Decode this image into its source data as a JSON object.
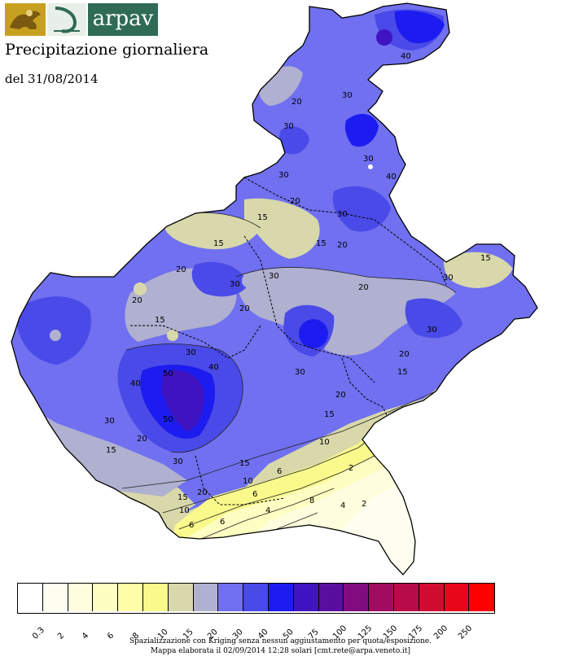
{
  "header": {
    "brand": "arpav",
    "title": "Precipitazione giornaliera",
    "date": "del 31/08/2014"
  },
  "map": {
    "contour_labels": [
      "40",
      "20",
      "30",
      "30",
      "30",
      "40",
      "30",
      "30",
      "20",
      "15",
      "15",
      "15",
      "20",
      "30",
      "20",
      "20",
      "15",
      "30",
      "30",
      "15",
      "20",
      "20",
      "30",
      "15",
      "30",
      "40",
      "30",
      "20",
      "40",
      "50",
      "50",
      "30",
      "20",
      "30",
      "20",
      "15",
      "15",
      "10",
      "20",
      "15",
      "10",
      "6",
      "6",
      "8",
      "4",
      "2",
      "10",
      "15",
      "6",
      "6",
      "4",
      "2"
    ]
  },
  "legend": {
    "colors": [
      "#ffffff",
      "#fefef0",
      "#fefede",
      "#fefec2",
      "#fefea8",
      "#fafa8c",
      "#d8d8aa",
      "#b0b0d0",
      "#7070f0",
      "#4a4ae8",
      "#1c1cf0",
      "#4014c0",
      "#5a0ea0",
      "#800c80",
      "#a00c60",
      "#b80c48",
      "#d00c30",
      "#e8061a",
      "#fe0000"
    ],
    "ticks": [
      "0.3",
      "2",
      "4",
      "6",
      "8",
      "10",
      "15",
      "20",
      "30",
      "40",
      "50",
      "75",
      "100",
      "125",
      "150",
      "175",
      "200",
      "250"
    ]
  },
  "footer": {
    "line1": "Spazializzazione con Kriging senza nessun aggiustamento per quota/esposizione.",
    "line2": "Mappa elaborata il 02/09/2014 12:28 solari [cmt.rete@arpa.veneto.it]"
  }
}
